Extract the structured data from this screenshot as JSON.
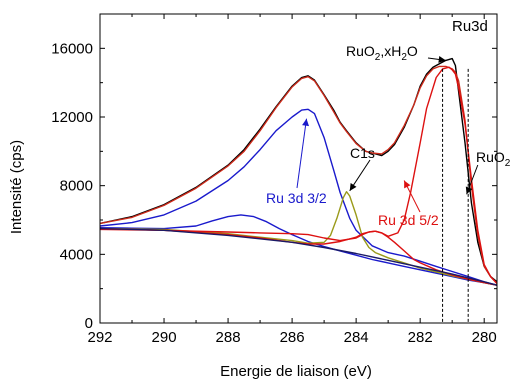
{
  "chart_data": {
    "type": "line",
    "xlabel": "Energie de liaison (eV)",
    "ylabel": "Intensité (cps)",
    "xlim": [
      292,
      279.6
    ],
    "ylim": [
      0,
      18000
    ],
    "x_ticks": [
      292,
      290,
      288,
      286,
      284,
      282,
      280
    ],
    "y_ticks": [
      0,
      4000,
      8000,
      12000,
      16000
    ],
    "grid": false,
    "annotations": {
      "panel": "Ru3d",
      "ruo2_hydrate": "RuO",
      "ruo2_hydrate_sub1": "2",
      "ruo2_hydrate_mid": ",xH",
      "ruo2_hydrate_sub2": "2",
      "ruo2_hydrate_end": "O",
      "ruo2": "RuO",
      "ruo2_sub": "2",
      "c1s": "C1s",
      "ru32": "Ru 3d 3/2",
      "ru52": "Ru 3d 5/2"
    },
    "vertical_lines_x": [
      281.3,
      280.5
    ],
    "series": [
      {
        "color": "#000000",
        "x": [
          292,
          291,
          290,
          289,
          288,
          287.5,
          287,
          286.5,
          286,
          285.7,
          285.5,
          285.3,
          285,
          284.7,
          284.5,
          284.3,
          284,
          283.7,
          283.5,
          283.2,
          283,
          282.8,
          282.5,
          282.2,
          282,
          281.8,
          281.6,
          281.4,
          281.2,
          281,
          280.9,
          280.8,
          280.6,
          280.4,
          280.2,
          280,
          279.8,
          279.6
        ],
        "y": [
          5800,
          6200,
          6900,
          7900,
          9200,
          10100,
          11300,
          12600,
          13800,
          14300,
          14400,
          14150,
          13300,
          12400,
          11700,
          11200,
          10500,
          10000,
          9900,
          9750,
          10000,
          10400,
          11400,
          12700,
          13800,
          14500,
          14900,
          15100,
          15300,
          15400,
          15000,
          13500,
          10500,
          7000,
          4700,
          3300,
          2700,
          2400
        ]
      },
      {
        "color": "#cc2a1a",
        "x": [
          292,
          291,
          290,
          289,
          288,
          287.5,
          287,
          286.5,
          286,
          285.7,
          285.5,
          285.3,
          285,
          284.7,
          284.5,
          284.3,
          284,
          283.7,
          283.5,
          283.2,
          283,
          282.8,
          282.5,
          282.2,
          282,
          281.8,
          281.6,
          281.4,
          281.2,
          281,
          280.9,
          280.8,
          280.6,
          280.4,
          280.2,
          280,
          279.8,
          279.6
        ],
        "y": [
          5800,
          6150,
          6850,
          7850,
          9150,
          10000,
          11200,
          12550,
          13750,
          14250,
          14350,
          14100,
          13250,
          12300,
          11650,
          11150,
          10450,
          10000,
          9900,
          9850,
          10100,
          10500,
          11500,
          12700,
          13700,
          14400,
          14800,
          14950,
          14950,
          14800,
          14600,
          14100,
          11800,
          8000,
          5100,
          3300,
          2700,
          2300
        ]
      },
      {
        "color": "#1a1acc",
        "x": [
          292,
          291,
          290,
          289,
          288,
          287.5,
          287,
          286.5,
          286,
          285.7,
          285.5,
          285.3,
          285,
          284.7,
          284.5,
          284.2,
          284,
          283.5,
          283,
          282.5,
          282,
          281.5,
          281,
          280.5,
          280,
          279.6
        ],
        "y": [
          5650,
          5850,
          6300,
          7100,
          8300,
          9100,
          10100,
          11200,
          12000,
          12400,
          12450,
          12200,
          10800,
          8900,
          7600,
          6100,
          5400,
          4500,
          4100,
          3900,
          3600,
          3300,
          3000,
          2700,
          2400,
          2200
        ]
      },
      {
        "color": "#1a1acc",
        "x": [
          292,
          291,
          290,
          289,
          288.5,
          288,
          287.6,
          287.2,
          286.8,
          286.4,
          286,
          285.5,
          285,
          284.5,
          284,
          283.5,
          283,
          282.5,
          282,
          281.5,
          281,
          280.5,
          280,
          279.6
        ],
        "y": [
          5550,
          5520,
          5500,
          5650,
          5950,
          6200,
          6300,
          6200,
          5900,
          5500,
          5150,
          4750,
          4450,
          4200,
          3950,
          3700,
          3500,
          3300,
          3100,
          2900,
          2700,
          2500,
          2350,
          2200
        ]
      },
      {
        "color": "#9a9a1a",
        "x": [
          292,
          290,
          288,
          287,
          286,
          285.5,
          285,
          284.8,
          284.6,
          284.4,
          284.3,
          284.2,
          284.0,
          283.8,
          283.6,
          283.4,
          283.2,
          283,
          282.5,
          282,
          281,
          280,
          279.6
        ],
        "y": [
          5500,
          5450,
          5200,
          5000,
          4800,
          4650,
          4700,
          5100,
          6100,
          7300,
          7650,
          7400,
          6300,
          5000,
          4400,
          4100,
          3950,
          3800,
          3500,
          3200,
          2750,
          2350,
          2200
        ]
      },
      {
        "color": "#dd1111",
        "x": [
          292,
          291,
          290,
          289,
          288,
          287,
          286,
          285.5,
          285,
          284.5,
          284,
          283.8,
          283.6,
          283.4,
          283.2,
          283,
          282.7,
          282.5,
          282.3,
          282,
          281.8,
          281.5,
          281.3,
          281.1,
          281,
          280.9,
          280.8,
          280.6,
          280.4,
          280.2,
          280,
          279.8,
          279.6
        ],
        "y": [
          5500,
          5450,
          5400,
          5350,
          5300,
          5250,
          5200,
          5150,
          4950,
          4800,
          4950,
          5150,
          5300,
          5350,
          5250,
          5050,
          5250,
          6000,
          7600,
          10500,
          12500,
          14300,
          14800,
          14900,
          14750,
          14500,
          13700,
          11600,
          8400,
          5400,
          3400,
          2700,
          2300
        ]
      },
      {
        "color": "#dd1111",
        "x": [
          292,
          290,
          288,
          287,
          286,
          285.5,
          285,
          284.5,
          284,
          283.8,
          283.6,
          283.4,
          283.2,
          283,
          282.8,
          282.5,
          282.2,
          282,
          281.5,
          281,
          280.5,
          280,
          279.6
        ],
        "y": [
          5450,
          5400,
          5150,
          4950,
          4700,
          4600,
          4600,
          4750,
          5000,
          5200,
          5300,
          5350,
          5250,
          5000,
          4700,
          4200,
          3700,
          3500,
          3100,
          2800,
          2550,
          2350,
          2200
        ]
      },
      {
        "color": "#1a1a66",
        "x": [
          292,
          290,
          288,
          286,
          285,
          284,
          283,
          282,
          281,
          280,
          279.6
        ],
        "y": [
          5500,
          5400,
          5100,
          4700,
          4400,
          4050,
          3650,
          3250,
          2850,
          2400,
          2200
        ]
      }
    ]
  }
}
